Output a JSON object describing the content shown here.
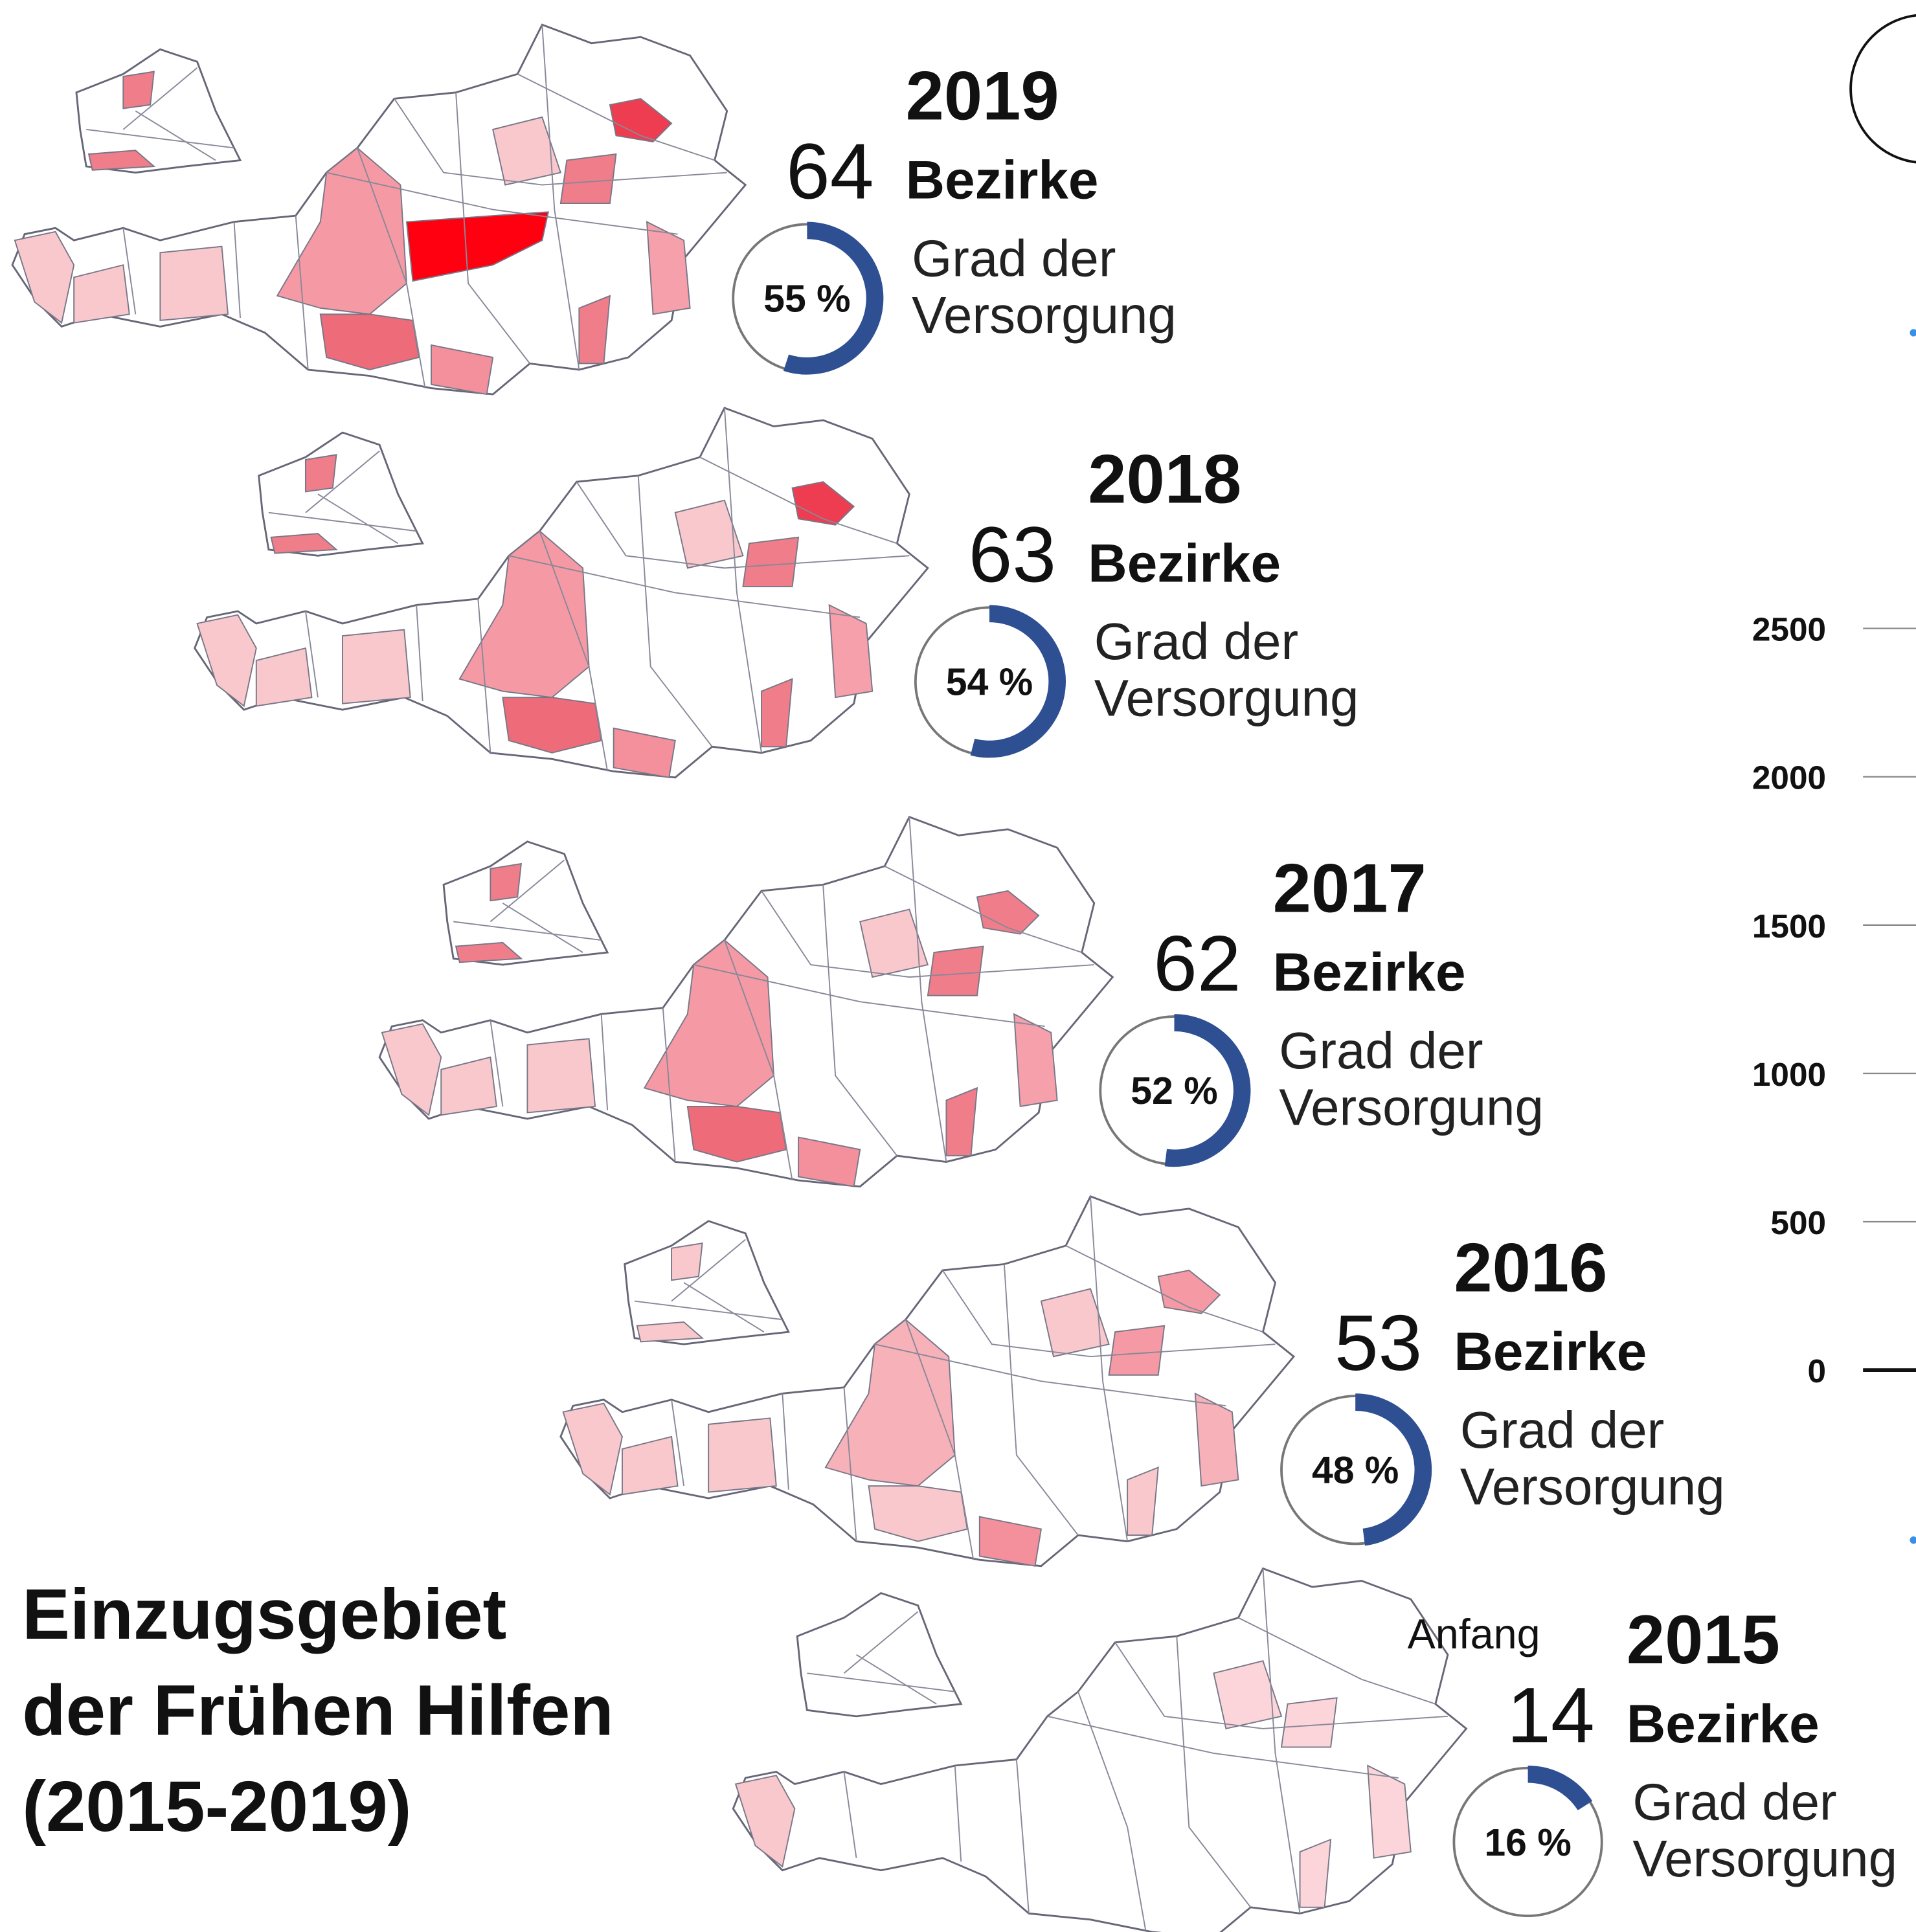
{
  "title_lines": [
    "Einzugsgebiet",
    "der Frühen Hilfen",
    "(2015-2019)"
  ],
  "panels": [
    {
      "year": "2019",
      "count": 64,
      "unit": "Bezirke",
      "coverage": 55,
      "coverage_label": "55 %",
      "caption_1": "Grad der",
      "caption_2": "Versorgung"
    },
    {
      "year": "2018",
      "count": 63,
      "unit": "Bezirke",
      "coverage": 54,
      "coverage_label": "54 %",
      "caption_1": "Grad der",
      "caption_2": "Versorgung"
    },
    {
      "year": "2017",
      "count": 62,
      "unit": "Bezirke",
      "coverage": 52,
      "coverage_label": "52 %",
      "caption_1": "Grad der",
      "caption_2": "Versorgung"
    },
    {
      "year": "2016",
      "count": 53,
      "unit": "Bezirke",
      "coverage": 48,
      "coverage_label": "48 %",
      "caption_1": "Grad der",
      "caption_2": "Versorgung"
    },
    {
      "prefix": "Anfang",
      "year": "2015",
      "count": 14,
      "unit": "Bezirke",
      "coverage": 16,
      "coverage_label": "16 %",
      "caption_1": "Grad der",
      "caption_2": "Versorgung"
    }
  ],
  "side_axis_ticks": [
    2500,
    2000,
    1500,
    1000,
    500,
    0
  ]
}
